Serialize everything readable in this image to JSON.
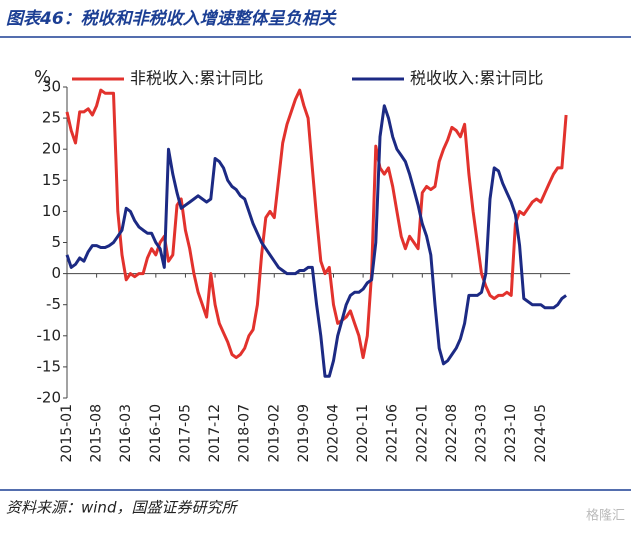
{
  "title": "图表46：税收和非税收入增速整体呈负相关",
  "source": "资料来源：wind，国盛证券研究所",
  "watermark": "格隆汇",
  "chart_data": {
    "type": "line",
    "y_unit": "%",
    "categories": [
      "2015-01",
      null,
      null,
      null,
      null,
      null,
      null,
      "2015-08",
      null,
      null,
      null,
      null,
      null,
      null,
      "2016-03",
      null,
      null,
      null,
      null,
      null,
      null,
      "2016-10",
      null,
      null,
      null,
      null,
      null,
      null,
      "2017-05",
      null,
      null,
      null,
      null,
      null,
      null,
      "2017-12",
      null,
      null,
      null,
      null,
      null,
      null,
      "2018-07",
      null,
      null,
      null,
      null,
      null,
      null,
      "2019-02",
      null,
      null,
      null,
      null,
      null,
      null,
      "2019-09",
      null,
      null,
      null,
      null,
      null,
      null,
      "2020-04",
      null,
      null,
      null,
      null,
      null,
      null,
      "2020-11",
      null,
      null,
      null,
      null,
      null,
      null,
      "2021-06",
      null,
      null,
      null,
      null,
      null,
      null,
      "2022-01",
      null,
      null,
      null,
      null,
      null,
      null,
      "2022-08",
      null,
      null,
      null,
      null,
      null,
      null,
      "2023-03",
      null,
      null,
      null,
      null,
      null,
      null,
      "2023-10",
      null,
      null,
      null,
      null,
      null,
      null,
      "2024-05",
      null,
      null,
      null,
      null,
      null,
      null
    ],
    "series": [
      {
        "name": "非税收入:累计同比",
        "color": "#e2322d",
        "values": [
          26,
          23,
          21,
          26,
          26,
          26.5,
          25.5,
          27,
          29.5,
          29,
          29,
          29,
          10,
          3,
          -1,
          0,
          -0.5,
          0,
          0,
          2.5,
          4,
          3,
          5,
          6,
          2,
          3,
          11,
          12,
          7,
          4,
          0,
          -3,
          -5,
          -7,
          0,
          -5,
          -8,
          -9.5,
          -11,
          -13,
          -13.5,
          -13,
          -12,
          -10,
          -9,
          -5,
          3,
          9,
          10,
          9,
          15,
          21,
          24,
          26,
          28,
          29.5,
          27,
          25,
          17,
          9,
          2,
          0,
          1,
          -5,
          -8,
          -7.5,
          -7,
          -6,
          -8,
          -10,
          -13.5,
          -10,
          0,
          20.5,
          17,
          16,
          17,
          14,
          10,
          6,
          4,
          6,
          5,
          4,
          13,
          14,
          13.5,
          14,
          18,
          20,
          21.5,
          23.5,
          23,
          22,
          24,
          16,
          10,
          5,
          0,
          -2,
          -3.5,
          -4,
          -3.5,
          -3.5,
          -3,
          -3.5,
          8,
          10,
          9.5,
          10.5,
          11.5,
          12,
          11.5,
          13,
          14.5,
          16,
          17,
          17,
          25.5
        ]
      },
      {
        "name": "税收收入:累计同比",
        "color": "#1c2a84",
        "values": [
          3,
          1,
          1.5,
          2.5,
          2,
          3.5,
          4.5,
          4.5,
          4.2,
          4.2,
          4.5,
          5,
          6,
          7,
          10.5,
          10,
          8.5,
          7.5,
          7,
          6.5,
          6.5,
          5,
          4,
          1,
          20,
          16,
          13,
          10.5,
          11,
          11.5,
          12,
          12.5,
          12,
          11.5,
          12,
          18.5,
          18,
          17,
          15,
          14,
          13.5,
          12.5,
          12,
          10,
          8,
          6.5,
          5,
          4,
          3,
          2,
          1,
          0.5,
          0,
          0,
          0,
          0.5,
          0.5,
          1,
          1,
          -5,
          -10,
          -16.5,
          -16.5,
          -14,
          -10,
          -7.5,
          -5,
          -3.5,
          -3,
          -3,
          -2.5,
          -1.5,
          -1,
          5,
          22,
          27,
          25,
          22,
          20,
          19,
          18,
          16,
          13.5,
          11,
          8,
          6,
          3,
          -5,
          -12,
          -14.5,
          -14,
          -13,
          -12,
          -10.5,
          -8,
          -3.5,
          -3.5,
          -3.5,
          -3,
          0,
          12,
          17,
          16.5,
          14.5,
          13,
          11.5,
          9.5,
          4.5,
          -4,
          -4.5,
          -5,
          -5,
          -5,
          -5.5,
          -5.5,
          -5.5,
          -5,
          -4,
          -3.5
        ]
      }
    ],
    "ylim": [
      -20,
      30
    ],
    "yticks": [
      30,
      25,
      20,
      15,
      10,
      5,
      0,
      -5,
      -10,
      -15,
      -20
    ],
    "grid": false,
    "legend": "top"
  }
}
